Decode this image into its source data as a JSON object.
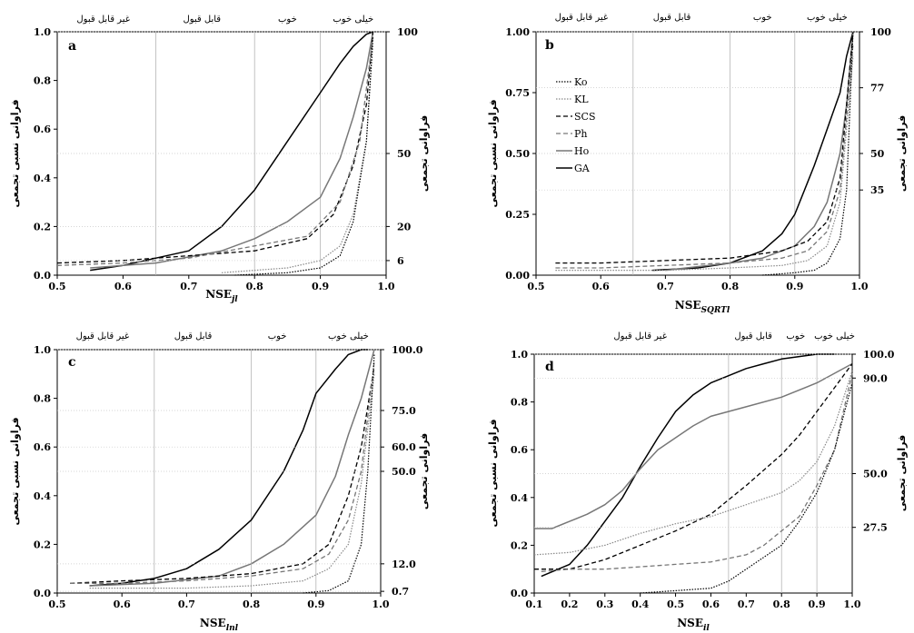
{
  "figure": {
    "categories": [
      "غیر قابل قبول",
      "قابل قبول",
      "خوب",
      "خیلی خوب"
    ],
    "y_label_left": "فراوانی نسبی تجمعی",
    "y_label_right": "فراوانی تجمعی",
    "legend": [
      "Ko",
      "KL",
      "SCS",
      "Ph",
      "Ho",
      "GA"
    ]
  },
  "series_style": {
    "Ko": {
      "color": "#000000",
      "dash": "1.5,1.5",
      "width": 1.2
    },
    "KL": {
      "color": "#888888",
      "dash": "1.5,1.5",
      "width": 1.2
    },
    "SCS": {
      "color": "#000000",
      "dash": "5,3",
      "width": 1.3
    },
    "Ph": {
      "color": "#777777",
      "dash": "5,3",
      "width": 1.3
    },
    "Ho": {
      "color": "#777777",
      "dash": "",
      "width": 1.5
    },
    "GA": {
      "color": "#000000",
      "dash": "",
      "width": 1.5
    }
  },
  "chart_data": [
    {
      "type": "line",
      "panel": "a",
      "xlabel": "NSEjl",
      "xlabel_main": "NSE",
      "xlabel_sub": "jl",
      "xlim": [
        0.5,
        1.0
      ],
      "ylim": [
        0,
        1
      ],
      "xticks": [
        "0.5",
        "0.6",
        "0.7",
        "0.8",
        "0.9",
        "1.0"
      ],
      "yticks": [
        "0.0",
        "0.2",
        "0.4",
        "0.6",
        "0.8",
        "1.0"
      ],
      "right_ticks": [
        {
          "value": 1.0,
          "label": "100"
        },
        {
          "value": 0.5,
          "label": "50"
        },
        {
          "value": 0.2,
          "label": "20"
        },
        {
          "value": 0.06,
          "label": "6"
        }
      ],
      "vlines": [
        0.65,
        0.8,
        0.9
      ],
      "category_label_x": [
        0.57,
        0.72,
        0.85,
        0.95
      ],
      "series": [
        {
          "name": "GA",
          "x": [
            0.55,
            0.6,
            0.65,
            0.7,
            0.75,
            0.8,
            0.85,
            0.9,
            0.93,
            0.95,
            0.97,
            0.98
          ],
          "y": [
            0.02,
            0.04,
            0.07,
            0.1,
            0.2,
            0.35,
            0.55,
            0.75,
            0.87,
            0.94,
            0.99,
            1.0
          ]
        },
        {
          "name": "Ho",
          "x": [
            0.55,
            0.65,
            0.75,
            0.8,
            0.85,
            0.9,
            0.93,
            0.95,
            0.97,
            0.98
          ],
          "y": [
            0.03,
            0.05,
            0.1,
            0.15,
            0.22,
            0.32,
            0.48,
            0.65,
            0.85,
            1.0
          ]
        },
        {
          "name": "SCS",
          "x": [
            0.5,
            0.6,
            0.7,
            0.8,
            0.88,
            0.92,
            0.95,
            0.97,
            0.98
          ],
          "y": [
            0.05,
            0.06,
            0.08,
            0.1,
            0.15,
            0.25,
            0.45,
            0.7,
            1.0
          ]
        },
        {
          "name": "Ph",
          "x": [
            0.5,
            0.6,
            0.7,
            0.8,
            0.88,
            0.93,
            0.96,
            0.98
          ],
          "y": [
            0.04,
            0.05,
            0.07,
            0.12,
            0.16,
            0.3,
            0.55,
            0.98
          ]
        },
        {
          "name": "KL",
          "x": [
            0.75,
            0.85,
            0.9,
            0.93,
            0.95,
            0.97,
            0.98
          ],
          "y": [
            0.01,
            0.03,
            0.06,
            0.12,
            0.25,
            0.55,
            0.95
          ]
        },
        {
          "name": "Ko",
          "x": [
            0.77,
            0.85,
            0.9,
            0.93,
            0.95,
            0.97,
            0.98
          ],
          "y": [
            0.0,
            0.01,
            0.03,
            0.08,
            0.22,
            0.55,
            0.98
          ]
        }
      ]
    },
    {
      "type": "line",
      "panel": "b",
      "xlabel": "NSESQRTl",
      "xlabel_main": "NSE",
      "xlabel_sub": "SQRTl",
      "xlim": [
        0.5,
        1.0
      ],
      "ylim": [
        0,
        1
      ],
      "xticks": [
        "0.5",
        "0.6",
        "0.7",
        "0.8",
        "0.9",
        "1.0"
      ],
      "yticks": [
        "0.00",
        "0.25",
        "0.50",
        "0.75",
        "1.00"
      ],
      "right_ticks": [
        {
          "value": 1.0,
          "label": "100"
        },
        {
          "value": 0.77,
          "label": "77"
        },
        {
          "value": 0.5,
          "label": "50"
        },
        {
          "value": 0.35,
          "label": "35"
        }
      ],
      "vlines": [
        0.65,
        0.8,
        0.9
      ],
      "category_label_x": [
        0.57,
        0.71,
        0.85,
        0.95
      ],
      "series": [
        {
          "name": "GA",
          "x": [
            0.68,
            0.75,
            0.8,
            0.85,
            0.88,
            0.9,
            0.93,
            0.95,
            0.97,
            0.98,
            0.99
          ],
          "y": [
            0.02,
            0.03,
            0.05,
            0.1,
            0.17,
            0.25,
            0.45,
            0.6,
            0.75,
            0.9,
            1.0
          ]
        },
        {
          "name": "Ho",
          "x": [
            0.7,
            0.8,
            0.85,
            0.9,
            0.93,
            0.95,
            0.97,
            0.98,
            0.99
          ],
          "y": [
            0.02,
            0.05,
            0.07,
            0.12,
            0.2,
            0.3,
            0.5,
            0.7,
            1.0
          ]
        },
        {
          "name": "SCS",
          "x": [
            0.53,
            0.6,
            0.7,
            0.8,
            0.88,
            0.92,
            0.95,
            0.97,
            0.99
          ],
          "y": [
            0.05,
            0.05,
            0.06,
            0.07,
            0.1,
            0.14,
            0.22,
            0.4,
            1.0
          ]
        },
        {
          "name": "Ph",
          "x": [
            0.53,
            0.6,
            0.7,
            0.8,
            0.88,
            0.92,
            0.95,
            0.97,
            0.99
          ],
          "y": [
            0.03,
            0.03,
            0.04,
            0.05,
            0.07,
            0.1,
            0.18,
            0.35,
            0.95
          ]
        },
        {
          "name": "KL",
          "x": [
            0.53,
            0.6,
            0.7,
            0.8,
            0.88,
            0.92,
            0.95,
            0.97,
            0.99
          ],
          "y": [
            0.02,
            0.02,
            0.02,
            0.03,
            0.04,
            0.06,
            0.12,
            0.3,
            0.9
          ]
        },
        {
          "name": "Ko",
          "x": [
            0.85,
            0.9,
            0.93,
            0.95,
            0.97,
            0.98,
            0.99
          ],
          "y": [
            0.0,
            0.01,
            0.02,
            0.05,
            0.15,
            0.35,
            1.0
          ]
        }
      ],
      "legend": {
        "show": true,
        "placement": "top-left"
      }
    },
    {
      "type": "line",
      "panel": "c",
      "xlabel": "NSElnl",
      "xlabel_main": "NSE",
      "xlabel_sub": "lnl",
      "xlim": [
        0.5,
        1.0
      ],
      "ylim": [
        0,
        1
      ],
      "xticks": [
        "0.5",
        "0.6",
        "0.7",
        "0.8",
        "0.9",
        "1.0"
      ],
      "yticks": [
        "0.0",
        "0.2",
        "0.4",
        "0.6",
        "0.8",
        "1.0"
      ],
      "right_ticks": [
        {
          "value": 1.0,
          "label": "100.0"
        },
        {
          "value": 0.75,
          "label": "75.0"
        },
        {
          "value": 0.6,
          "label": "60.0"
        },
        {
          "value": 0.5,
          "label": "50.0"
        },
        {
          "value": 0.12,
          "label": "12.0"
        },
        {
          "value": 0.007,
          "label": "0.7"
        }
      ],
      "vlines": [
        0.65,
        0.8,
        0.9
      ],
      "category_label_x": [
        0.57,
        0.71,
        0.84,
        0.95
      ],
      "series": [
        {
          "name": "GA",
          "x": [
            0.55,
            0.6,
            0.65,
            0.7,
            0.75,
            0.8,
            0.85,
            0.88,
            0.9,
            0.93,
            0.95,
            0.97,
            0.98
          ],
          "y": [
            0.03,
            0.04,
            0.06,
            0.1,
            0.18,
            0.3,
            0.5,
            0.67,
            0.82,
            0.92,
            0.98,
            1.0,
            1.0
          ]
        },
        {
          "name": "Ho",
          "x": [
            0.55,
            0.65,
            0.75,
            0.8,
            0.85,
            0.9,
            0.93,
            0.95,
            0.97,
            0.99
          ],
          "y": [
            0.03,
            0.04,
            0.07,
            0.12,
            0.2,
            0.32,
            0.48,
            0.65,
            0.8,
            1.0
          ]
        },
        {
          "name": "SCS",
          "x": [
            0.52,
            0.6,
            0.7,
            0.8,
            0.88,
            0.92,
            0.95,
            0.97,
            0.99
          ],
          "y": [
            0.04,
            0.05,
            0.06,
            0.08,
            0.12,
            0.2,
            0.4,
            0.6,
            0.93
          ]
        },
        {
          "name": "Ph",
          "x": [
            0.52,
            0.6,
            0.7,
            0.8,
            0.88,
            0.92,
            0.95,
            0.97,
            0.99
          ],
          "y": [
            0.04,
            0.04,
            0.05,
            0.07,
            0.1,
            0.16,
            0.3,
            0.5,
            0.95
          ]
        },
        {
          "name": "KL",
          "x": [
            0.55,
            0.7,
            0.8,
            0.88,
            0.92,
            0.95,
            0.97,
            0.99
          ],
          "y": [
            0.02,
            0.02,
            0.03,
            0.05,
            0.1,
            0.2,
            0.45,
            0.9
          ]
        },
        {
          "name": "Ko",
          "x": [
            0.88,
            0.92,
            0.95,
            0.97,
            0.98,
            0.99
          ],
          "y": [
            0.0,
            0.01,
            0.05,
            0.2,
            0.5,
            0.98
          ]
        }
      ]
    },
    {
      "type": "line",
      "panel": "d",
      "xlabel": "NSEil",
      "xlabel_main": "NSE",
      "xlabel_sub": "il",
      "xlim": [
        0.1,
        1.0
      ],
      "ylim": [
        0,
        1
      ],
      "xticks": [
        "0.1",
        "0.2",
        "0.3",
        "0.4",
        "0.5",
        "0.6",
        "0.7",
        "0.8",
        "0.9",
        "1.0"
      ],
      "yticks": [
        "0.0",
        "0.2",
        "0.4",
        "0.6",
        "0.8",
        "1.0"
      ],
      "right_ticks": [
        {
          "value": 1.0,
          "label": "100.0"
        },
        {
          "value": 0.9,
          "label": "90.0"
        },
        {
          "value": 0.5,
          "label": "50.0"
        },
        {
          "value": 0.275,
          "label": "27.5"
        }
      ],
      "vlines": [
        0.65,
        0.8,
        0.9
      ],
      "category_label_x": [
        0.4,
        0.72,
        0.84,
        0.95
      ],
      "series": [
        {
          "name": "GA",
          "x": [
            0.12,
            0.2,
            0.25,
            0.3,
            0.35,
            0.4,
            0.45,
            0.5,
            0.55,
            0.6,
            0.65,
            0.7,
            0.75,
            0.8,
            0.85,
            0.9,
            0.95
          ],
          "y": [
            0.07,
            0.12,
            0.2,
            0.3,
            0.4,
            0.53,
            0.65,
            0.76,
            0.83,
            0.88,
            0.91,
            0.94,
            0.96,
            0.98,
            0.99,
            1.0,
            1.0
          ]
        },
        {
          "name": "Ho",
          "x": [
            0.1,
            0.15,
            0.2,
            0.25,
            0.3,
            0.35,
            0.4,
            0.45,
            0.5,
            0.55,
            0.6,
            0.7,
            0.8,
            0.9,
            1.0
          ],
          "y": [
            0.27,
            0.27,
            0.3,
            0.33,
            0.37,
            0.43,
            0.52,
            0.6,
            0.65,
            0.7,
            0.74,
            0.78,
            0.82,
            0.88,
            0.96
          ]
        },
        {
          "name": "SCS",
          "x": [
            0.1,
            0.2,
            0.3,
            0.4,
            0.5,
            0.6,
            0.7,
            0.8,
            0.85,
            0.9,
            0.95,
            1.0
          ],
          "y": [
            0.1,
            0.1,
            0.14,
            0.2,
            0.26,
            0.33,
            0.45,
            0.58,
            0.66,
            0.76,
            0.86,
            0.96
          ]
        },
        {
          "name": "KL",
          "x": [
            0.1,
            0.2,
            0.3,
            0.4,
            0.5,
            0.6,
            0.7,
            0.8,
            0.85,
            0.9,
            0.95,
            1.0
          ],
          "y": [
            0.16,
            0.17,
            0.2,
            0.25,
            0.29,
            0.32,
            0.37,
            0.42,
            0.47,
            0.55,
            0.7,
            0.93
          ]
        },
        {
          "name": "Ph",
          "x": [
            0.12,
            0.2,
            0.3,
            0.4,
            0.5,
            0.6,
            0.7,
            0.75,
            0.8,
            0.85,
            0.9,
            0.95,
            1.0
          ],
          "y": [
            0.09,
            0.1,
            0.1,
            0.11,
            0.12,
            0.13,
            0.16,
            0.2,
            0.26,
            0.32,
            0.45,
            0.6,
            0.92
          ]
        },
        {
          "name": "Ko",
          "x": [
            0.4,
            0.5,
            0.6,
            0.65,
            0.7,
            0.75,
            0.8,
            0.85,
            0.9,
            0.95,
            1.0
          ],
          "y": [
            0.0,
            0.01,
            0.02,
            0.05,
            0.1,
            0.15,
            0.2,
            0.3,
            0.42,
            0.6,
            0.88
          ]
        }
      ]
    }
  ]
}
